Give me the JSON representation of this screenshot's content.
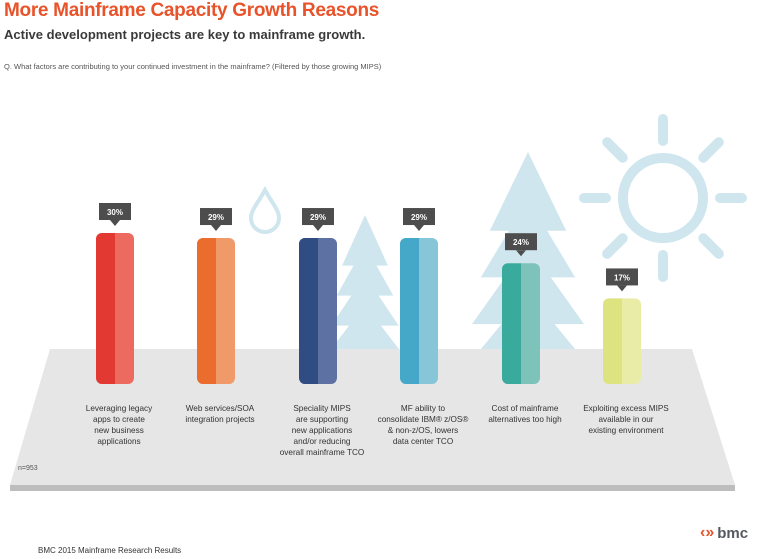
{
  "title": "More Mainframe Capacity Growth Reasons",
  "subtitle": "Active development projects are key to mainframe growth.",
  "question": "Q. What factors are contributing to your continued investment in the mainframe? (Filtered by those growing MIPS)",
  "sample_size": "n=953",
  "footer": "BMC 2015 Mainframe Research Results",
  "logo": {
    "mark": "‹»",
    "text": "bmc"
  },
  "colors": {
    "title": "#e8532a",
    "callout": "#4d4d4d",
    "floor": "#e6e6e6",
    "decor": "#cfe6ee"
  },
  "chart_data": {
    "type": "bar",
    "title": "More Mainframe Capacity Growth Reasons",
    "xlabel": "",
    "ylabel": "",
    "ylim": [
      0,
      30
    ],
    "grid": false,
    "categories": [
      [
        "Leveraging legacy",
        "apps to create",
        "new business",
        "applications"
      ],
      [
        "Web services/SOA",
        "integration projects"
      ],
      [
        "Speciality MIPS",
        "are supporting",
        "new applications",
        "and/or reducing",
        "overall mainframe TCO"
      ],
      [
        "MF ability to",
        "consolidate IBM® z/OS®",
        "& non-z/OS, lowers",
        "data center TCO"
      ],
      [
        "Cost of mainframe",
        "alternatives too high"
      ],
      [
        "Exploiting excess MIPS",
        "available in our",
        "existing environment"
      ]
    ],
    "values": [
      30,
      29,
      29,
      29,
      24,
      17
    ],
    "value_labels": [
      "30%",
      "29%",
      "29%",
      "29%",
      "24%",
      "17%"
    ],
    "colors": [
      {
        "dark": "#e23a33",
        "light": "#ec6a5f"
      },
      {
        "dark": "#ea6d2e",
        "light": "#f19a69"
      },
      {
        "dark": "#2f4c83",
        "light": "#5d72a3"
      },
      {
        "dark": "#45a8c8",
        "light": "#87c5d9"
      },
      {
        "dark": "#3aaa9c",
        "light": "#7ec3ba"
      },
      {
        "dark": "#dde47f",
        "light": "#e9eca6"
      }
    ]
  }
}
